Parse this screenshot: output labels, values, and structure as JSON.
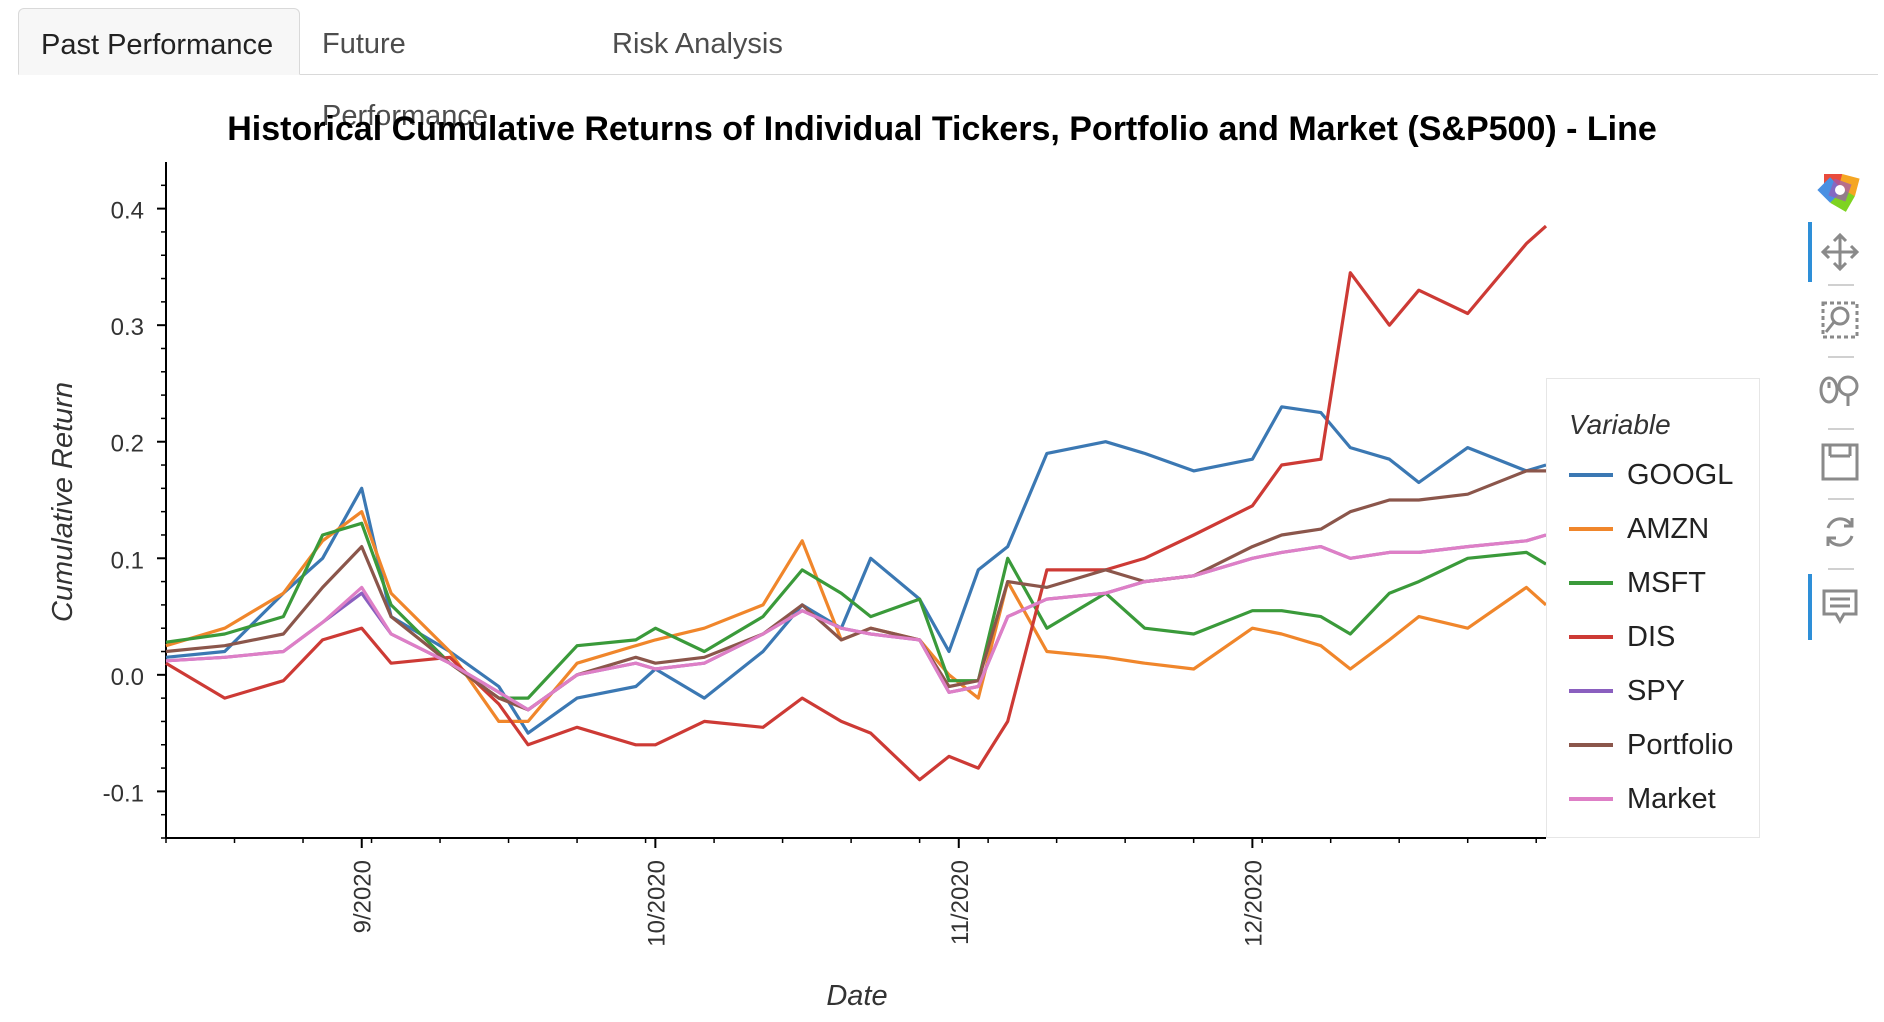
{
  "tabs": [
    {
      "label": "Past Performance",
      "active": true
    },
    {
      "label": "Future Performance",
      "active": false
    },
    {
      "label": "Risk Analysis",
      "active": false
    }
  ],
  "toolbar": {
    "tools": [
      "bokeh-logo-icon",
      "pan-icon",
      "box-zoom-icon",
      "wheel-zoom-icon",
      "save-icon",
      "reset-icon",
      "hover-icon"
    ]
  },
  "chart_data": {
    "type": "line",
    "title": "Historical Cumulative Returns of Individual Tickers, Portfolio and Market (S&P500) - Line",
    "xlabel": "Date",
    "ylabel": "Cumulative Return",
    "x_ticks": [
      "9/2020",
      "10/2020",
      "11/2020",
      "12/2020"
    ],
    "y_ticks": [
      "-0.1",
      "0.0",
      "0.1",
      "0.2",
      "0.3",
      "0.4"
    ],
    "ylim": [
      -0.14,
      0.44
    ],
    "xlim": [
      "2020-08-12",
      "2020-12-31"
    ],
    "grid": false,
    "legend_title": "Variable",
    "legend_position": "right",
    "x": [
      "2020-08-12",
      "2020-08-18",
      "2020-08-24",
      "2020-08-28",
      "2020-09-01",
      "2020-09-04",
      "2020-09-10",
      "2020-09-15",
      "2020-09-18",
      "2020-09-23",
      "2020-09-29",
      "2020-10-01",
      "2020-10-06",
      "2020-10-12",
      "2020-10-16",
      "2020-10-20",
      "2020-10-23",
      "2020-10-28",
      "2020-10-31",
      "2020-11-03",
      "2020-11-06",
      "2020-11-10",
      "2020-11-16",
      "2020-11-20",
      "2020-11-25",
      "2020-12-01",
      "2020-12-04",
      "2020-12-08",
      "2020-12-11",
      "2020-12-15",
      "2020-12-18",
      "2020-12-23",
      "2020-12-29",
      "2020-12-31"
    ],
    "series": [
      {
        "name": "GOOGL",
        "color": "#3b78b3",
        "values": [
          0.015,
          0.02,
          0.07,
          0.1,
          0.16,
          0.05,
          0.02,
          -0.01,
          -0.05,
          -0.02,
          -0.01,
          0.005,
          -0.02,
          0.02,
          0.06,
          0.04,
          0.1,
          0.065,
          0.02,
          0.09,
          0.11,
          0.19,
          0.2,
          0.19,
          0.175,
          0.185,
          0.23,
          0.225,
          0.195,
          0.185,
          0.165,
          0.195,
          0.175,
          0.18
        ]
      },
      {
        "name": "AMZN",
        "color": "#f0862b",
        "values": [
          0.025,
          0.04,
          0.07,
          0.115,
          0.14,
          0.07,
          0.02,
          -0.04,
          -0.04,
          0.01,
          0.025,
          0.03,
          0.04,
          0.06,
          0.115,
          0.03,
          0.04,
          0.03,
          0.0,
          -0.02,
          0.08,
          0.02,
          0.015,
          0.01,
          0.005,
          0.04,
          0.035,
          0.025,
          0.005,
          0.03,
          0.05,
          0.04,
          0.075,
          0.06
        ]
      },
      {
        "name": "MSFT",
        "color": "#3a9a3a",
        "values": [
          0.028,
          0.035,
          0.05,
          0.12,
          0.13,
          0.06,
          0.01,
          -0.02,
          -0.02,
          0.025,
          0.03,
          0.04,
          0.02,
          0.05,
          0.09,
          0.07,
          0.05,
          0.065,
          -0.005,
          -0.005,
          0.1,
          0.04,
          0.07,
          0.04,
          0.035,
          0.055,
          0.055,
          0.05,
          0.035,
          0.07,
          0.08,
          0.1,
          0.105,
          0.095
        ]
      },
      {
        "name": "DIS",
        "color": "#cd3a35",
        "values": [
          0.01,
          -0.02,
          -0.005,
          0.03,
          0.04,
          0.01,
          0.015,
          -0.025,
          -0.06,
          -0.045,
          -0.06,
          -0.06,
          -0.04,
          -0.045,
          -0.02,
          -0.04,
          -0.05,
          -0.09,
          -0.07,
          -0.08,
          -0.04,
          0.09,
          0.09,
          0.1,
          0.12,
          0.145,
          0.18,
          0.185,
          0.345,
          0.3,
          0.33,
          0.31,
          0.37,
          0.385
        ]
      },
      {
        "name": "SPY",
        "color": "#8a5fbf",
        "values": [
          0.012,
          0.015,
          0.02,
          0.045,
          0.07,
          0.035,
          0.01,
          -0.015,
          -0.03,
          0.0,
          0.01,
          0.005,
          0.01,
          0.035,
          0.055,
          0.04,
          0.035,
          0.03,
          -0.015,
          -0.01,
          0.05,
          0.065,
          0.07,
          0.08,
          0.085,
          0.1,
          0.105,
          0.11,
          0.1,
          0.105,
          0.105,
          0.11,
          0.115,
          0.12
        ]
      },
      {
        "name": "Portfolio",
        "color": "#8b564b",
        "values": [
          0.02,
          0.025,
          0.035,
          0.075,
          0.11,
          0.05,
          0.01,
          -0.02,
          -0.03,
          0.0,
          0.015,
          0.01,
          0.015,
          0.035,
          0.06,
          0.03,
          0.04,
          0.03,
          -0.01,
          -0.005,
          0.08,
          0.075,
          0.09,
          0.08,
          0.085,
          0.11,
          0.12,
          0.125,
          0.14,
          0.15,
          0.15,
          0.155,
          0.175,
          0.175
        ]
      },
      {
        "name": "Market",
        "color": "#de7fc6",
        "values": [
          0.012,
          0.015,
          0.02,
          0.045,
          0.075,
          0.035,
          0.01,
          -0.015,
          -0.03,
          0.0,
          0.01,
          0.005,
          0.01,
          0.035,
          0.055,
          0.04,
          0.035,
          0.03,
          -0.015,
          -0.01,
          0.05,
          0.065,
          0.07,
          0.08,
          0.085,
          0.1,
          0.105,
          0.11,
          0.1,
          0.105,
          0.105,
          0.11,
          0.115,
          0.12
        ]
      }
    ]
  }
}
